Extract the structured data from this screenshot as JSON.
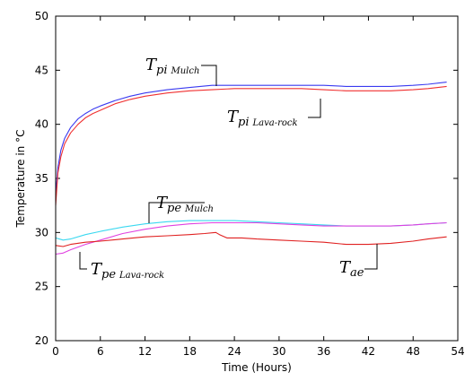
{
  "chart_data": {
    "type": "line",
    "xlabel": "Time (Hours)",
    "ylabel": "Temperature in °C",
    "xlim": [
      0,
      54
    ],
    "ylim": [
      20,
      50
    ],
    "xticks": [
      0,
      6,
      12,
      18,
      24,
      30,
      36,
      42,
      48,
      54
    ],
    "yticks": [
      20,
      25,
      30,
      35,
      40,
      45,
      50
    ],
    "grid": false,
    "series": [
      {
        "color": "#3a3af0",
        "x": [
          0,
          0.3,
          0.7,
          1.2,
          2,
          3,
          4,
          5,
          6,
          8,
          10,
          12,
          15,
          18,
          21,
          24,
          27,
          30,
          33,
          36,
          39,
          42,
          45,
          48,
          50,
          52.5
        ],
        "y": [
          33.5,
          36.0,
          37.6,
          38.7,
          39.7,
          40.5,
          41.0,
          41.4,
          41.7,
          42.2,
          42.6,
          42.9,
          43.2,
          43.4,
          43.6,
          43.6,
          43.6,
          43.6,
          43.6,
          43.6,
          43.5,
          43.5,
          43.5,
          43.6,
          43.7,
          43.9
        ]
      },
      {
        "color": "#f03030",
        "x": [
          0,
          0.3,
          0.7,
          1.2,
          2,
          3,
          4,
          5,
          6,
          8,
          10,
          12,
          15,
          18,
          21,
          24,
          27,
          30,
          33,
          36,
          39,
          42,
          45,
          48,
          50,
          52.5
        ],
        "y": [
          32.5,
          35.5,
          37.0,
          38.2,
          39.2,
          40.0,
          40.6,
          41.0,
          41.3,
          41.9,
          42.3,
          42.6,
          42.9,
          43.1,
          43.2,
          43.3,
          43.3,
          43.3,
          43.3,
          43.2,
          43.1,
          43.1,
          43.1,
          43.2,
          43.3,
          43.5
        ]
      },
      {
        "color": "#3ad8f0",
        "x": [
          0,
          1,
          2,
          4,
          6,
          9,
          12,
          15,
          18,
          21,
          24,
          27,
          30,
          33,
          36,
          39,
          42,
          45,
          48,
          50,
          52.5
        ],
        "y": [
          29.5,
          29.3,
          29.4,
          29.8,
          30.1,
          30.5,
          30.8,
          31.0,
          31.1,
          31.1,
          31.1,
          31.0,
          30.9,
          30.8,
          30.7,
          30.6,
          30.6,
          30.6,
          30.7,
          30.8,
          30.9
        ]
      },
      {
        "color": "#e040e0",
        "x": [
          0,
          1,
          2,
          4,
          6,
          9,
          12,
          15,
          18,
          21,
          24,
          27,
          30,
          33,
          36,
          39,
          42,
          45,
          48,
          50,
          52.5
        ],
        "y": [
          28.0,
          28.1,
          28.4,
          28.9,
          29.3,
          29.9,
          30.3,
          30.6,
          30.8,
          30.9,
          30.9,
          30.9,
          30.8,
          30.7,
          30.6,
          30.6,
          30.6,
          30.6,
          30.7,
          30.8,
          30.9
        ]
      },
      {
        "color": "#e02020",
        "x": [
          0,
          1,
          2,
          4,
          6,
          9,
          12,
          15,
          18,
          20,
          21.5,
          22,
          23,
          25,
          27,
          30,
          33,
          36,
          39,
          42,
          45,
          48,
          50,
          52.5
        ],
        "y": [
          28.8,
          28.7,
          28.9,
          29.1,
          29.2,
          29.4,
          29.6,
          29.7,
          29.8,
          29.9,
          30.0,
          29.8,
          29.5,
          29.5,
          29.4,
          29.3,
          29.2,
          29.1,
          28.9,
          28.9,
          29.0,
          29.2,
          29.4,
          29.6
        ]
      }
    ],
    "annotations": [
      {
        "label": "T",
        "sub": "pi",
        "tag": "Mulch"
      },
      {
        "label": "T",
        "sub": "pi",
        "tag": "Lava-rock"
      },
      {
        "label": "T",
        "sub": "pe",
        "tag": "Mulch"
      },
      {
        "label": "T",
        "sub": "pe",
        "tag": "Lava-rock"
      },
      {
        "label": "T",
        "sub": "ae",
        "tag": ""
      }
    ]
  }
}
